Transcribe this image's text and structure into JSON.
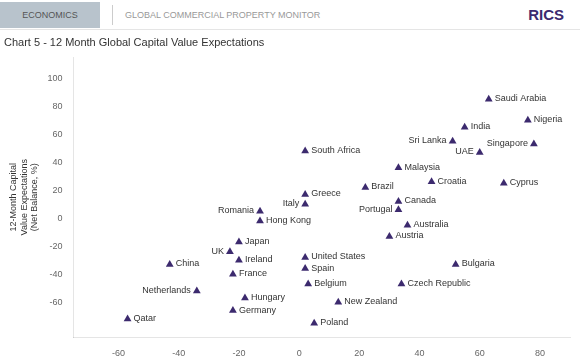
{
  "chart_data": {
    "type": "scatter",
    "title": "Chart 5 - 12 Month Global Capital Value Expectations",
    "header_left": "ECONOMICS",
    "header_center": "GLOBAL COMMERCIAL PROPERTY MONITOR",
    "header_right": "RICS",
    "ylabel": "12-Month Capital\nValue Expectations\n(Net Balance, %)",
    "xlim": [
      -75,
      90
    ],
    "ylim": [
      -85,
      115
    ],
    "xticks": [
      -60,
      -40,
      -20,
      0,
      20,
      40,
      60,
      80
    ],
    "yticks": [
      -60,
      -40,
      -20,
      0,
      20,
      40,
      60,
      80,
      100
    ],
    "color": "#3c2a6e",
    "marker": "triangle",
    "grid": false,
    "labels": [
      "Saudi Arabia",
      "Nigeria",
      "India",
      "Singapore",
      "Sri Lanka",
      "UAE",
      "South Africa",
      "Malaysia",
      "Cyprus",
      "Croatia",
      "Brazil",
      "Greece",
      "Italy",
      "Canada",
      "Portugal",
      "Romania",
      "Hong Kong",
      "Australia",
      "Austria",
      "Japan",
      "UK",
      "United States",
      "Spain",
      "Bulgaria",
      "Ireland",
      "China",
      "France",
      "Belgium",
      "Czech Republic",
      "Netherlands",
      "Hungary",
      "New Zealand",
      "Germany",
      "Qatar",
      "Poland"
    ],
    "x": [
      63,
      76,
      55,
      78,
      51,
      60,
      2,
      33,
      68,
      44,
      22,
      2,
      2,
      33,
      33,
      -13,
      -13,
      36,
      30,
      -20,
      -23,
      2,
      2,
      52,
      -20,
      -43,
      -22,
      3,
      34,
      -34,
      -18,
      13,
      -22,
      -57,
      5
    ],
    "values": [
      85,
      70,
      65,
      53,
      55,
      47,
      48,
      36,
      25,
      26,
      22,
      17,
      10,
      12,
      6,
      5,
      -2,
      -5,
      -13,
      -17,
      -24,
      -28,
      -36,
      -33,
      -30,
      -33,
      -40,
      -47,
      -47,
      -52,
      -57,
      -60,
      -66,
      -72,
      -75
    ]
  }
}
